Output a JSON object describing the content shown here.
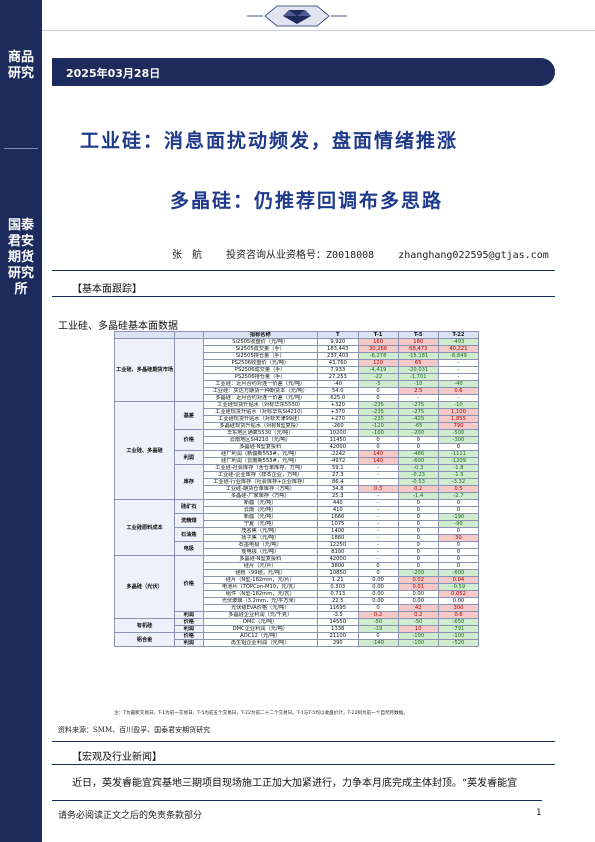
{
  "sidebar": {
    "category": "商品研究",
    "org": "国泰君安期货研究所"
  },
  "header": {
    "date": "2025年03月28日"
  },
  "title": {
    "line1": "工业硅：消息面扰动频发，盘面情绪推涨",
    "line2": "多晶硅：仍推荐回调布多思路"
  },
  "author": {
    "name": "张　航",
    "qualification": "投资咨询从业资格号：Z0018008",
    "email": "zhanghang022595@gtjas.com"
  },
  "sections": {
    "basic": "【基本面跟踪】",
    "macro": "【宏观及行业新闻】"
  },
  "table_title": "工业硅、多晶硅基本面数据",
  "table": {
    "headers": [
      "",
      "",
      "指标名称",
      "T",
      "T-1",
      "T-5",
      "T-22"
    ],
    "rows": [
      {
        "g1": "工业硅、多晶硅期货市场",
        "g2": "",
        "name": "Si2505收盘价（元/吨）",
        "t": "9,920",
        "t1": "160",
        "t5": "180",
        "t22": "-493",
        "c1": "up",
        "c5": "up",
        "c22": "dn"
      },
      {
        "g1": "",
        "g2": "",
        "name": "Si2505成交量（手）",
        "t": "183,443",
        "t1": "30,266",
        "t5": "68,473",
        "t22": "40,221",
        "c1": "up",
        "c5": "up",
        "c22": "up"
      },
      {
        "g1": "",
        "g2": "",
        "name": "Si2505持仓量（手）",
        "t": "237,403",
        "t1": "-6,278",
        "t5": "-15,181",
        "t22": "-6,849",
        "c1": "dn",
        "c5": "dn",
        "c22": "dn"
      },
      {
        "g1": "",
        "g2": "",
        "name": "PS2506收盘价（元/吨）",
        "t": "43,760",
        "t1": "120",
        "t5": "65",
        "t22": "-",
        "c1": "up",
        "c5": "up",
        "c22": ""
      },
      {
        "g1": "",
        "g2": "",
        "name": "PS2506成交量（手）",
        "t": "7,933",
        "t1": "-4,419",
        "t5": "-20,031",
        "t22": "-",
        "c1": "dn",
        "c5": "dn",
        "c22": ""
      },
      {
        "g1": "",
        "g2": "",
        "name": "PS2506持仓量（手）",
        "t": "27,253",
        "t1": "-22",
        "t5": "-1,701",
        "t22": "-",
        "c1": "dn",
        "c5": "dn",
        "c22": ""
      },
      {
        "g1": "",
        "g2": "",
        "name": "工业硅：近月合约对连一价差（元/吨）",
        "t": "-40",
        "t1": "-5",
        "t5": "-10",
        "t22": "-40",
        "c1": "dn",
        "c5": "dn",
        "c22": "dn"
      },
      {
        "g1": "",
        "g2": "",
        "name": "工业硅：实达万期货一种期货本（元/吨）",
        "t": "54.0",
        "t1": "0",
        "t5": "2.5",
        "t22": "0.6",
        "c1": "",
        "c5": "up",
        "c22": "up"
      },
      {
        "g1": "",
        "g2": "",
        "name": "多晶硅：近月合约对连一价差（元/吨）",
        "t": "625.0",
        "t1": "0",
        "t5": "-",
        "t22": "-",
        "c1": "",
        "c5": "",
        "c22": ""
      },
      {
        "g1": "工业硅、多晶硅",
        "g2": "基差",
        "name": "工业硅现货升贴水（对标华东5530）",
        "t": "+320",
        "t1": "-235",
        "t5": "-275",
        "t22": "-10",
        "c1": "dn",
        "c5": "dn",
        "c22": "dn"
      },
      {
        "g1": "",
        "g2": "",
        "name": "工业硅现货升贴水（对标华东Si4210）",
        "t": "+370",
        "t1": "-235",
        "t5": "-275",
        "t22": "1,100",
        "c1": "dn",
        "c5": "dn",
        "c22": "up"
      },
      {
        "g1": "",
        "g2": "",
        "name": "工业硅现货升贴水（对标天津99硅）",
        "t": "+270",
        "t1": "-235",
        "t5": "-425",
        "t22": "1,855",
        "c1": "dn",
        "c5": "dn",
        "c22": "up"
      },
      {
        "g1": "",
        "g2": "",
        "name": "多晶硅现货升贴水（对标N型复投）",
        "t": "-260",
        "t1": "-120",
        "t5": "-65",
        "t22": "790",
        "c1": "dn",
        "c5": "dn",
        "c22": "up"
      },
      {
        "g1": "",
        "g2": "价格",
        "name": "华东地区通氧5530（元/吨）",
        "t": "10200",
        "t1": "-100",
        "t5": "-200",
        "t22": "-500",
        "c1": "dn",
        "c5": "dn",
        "c22": "dn"
      },
      {
        "g1": "",
        "g2": "",
        "name": "云南地区Si4210（元/吨）",
        "t": "11450",
        "t1": "0",
        "t5": "0",
        "t22": "-300",
        "c1": "",
        "c5": "",
        "c22": "dn"
      },
      {
        "g1": "",
        "g2": "",
        "name": "多晶硅-N型复投料",
        "t": "42000",
        "t1": "0",
        "t5": "0",
        "t22": "0",
        "c1": "",
        "c5": "",
        "c22": ""
      },
      {
        "g1": "",
        "g2": "利润",
        "name": "硅厂利润（新疆新553#，元/吨）",
        "t": "-2242",
        "t1": "140",
        "t5": "-486",
        "t22": "-1111",
        "c1": "up",
        "c5": "dn",
        "c22": "dn"
      },
      {
        "g1": "",
        "g2": "",
        "name": "硅厂利润（云南新553#，元/吨）",
        "t": "-4972",
        "t1": "140",
        "t5": "-600",
        "t22": "-1209",
        "c1": "up",
        "c5": "dn",
        "c22": "dn"
      },
      {
        "g1": "",
        "g2": "库存",
        "name": "工业硅-社会库存（含仓单库存，万吨）",
        "t": "59.1",
        "t1": "-",
        "t5": "-0.3",
        "t22": "-1.8",
        "c1": "",
        "c5": "dn",
        "c22": "dn"
      },
      {
        "g1": "",
        "g2": "",
        "name": "工业硅-企业库存（样本企业，万吨）",
        "t": "27.3",
        "t1": "-",
        "t5": "-0.23",
        "t22": "-1.5",
        "c1": "",
        "c5": "dn",
        "c22": "dn"
      },
      {
        "g1": "",
        "g2": "",
        "name": "工业硅-行业库存（社会库存+企业库存）",
        "t": "86.4",
        "t1": "-",
        "t5": "-0.53",
        "t22": "-3.32",
        "c1": "",
        "c5": "dn",
        "c22": "dn"
      },
      {
        "g1": "",
        "g2": "",
        "name": "工业硅-期货仓单库存（万吨）",
        "t": "34.8",
        "t1": "0.3",
        "t5": "0.2",
        "t22": "0.5",
        "c1": "up",
        "c5": "up",
        "c22": "up"
      },
      {
        "g1": "",
        "g2": "",
        "name": "多晶硅-厂家库存（万吨）",
        "t": "25.3",
        "t1": "-",
        "t5": "-1.4",
        "t22": "-2.7",
        "c1": "",
        "c5": "dn",
        "c22": "dn"
      },
      {
        "g1": "工业硅原料成本",
        "g2": "硅矿石",
        "name": "新疆（元/吨）",
        "t": "440",
        "t1": "-",
        "t5": "0",
        "t22": "0",
        "c1": "",
        "c5": "",
        "c22": ""
      },
      {
        "g1": "",
        "g2": "",
        "name": "云南（元/吨）",
        "t": "410",
        "t1": "-",
        "t5": "0",
        "t22": "0",
        "c1": "",
        "c5": "",
        "c22": ""
      },
      {
        "g1": "",
        "g2": "洗精煤",
        "name": "新疆（元/吨）",
        "t": "1660",
        "t1": "-",
        "t5": "0",
        "t22": "-190",
        "c1": "",
        "c5": "",
        "c22": "dn"
      },
      {
        "g1": "",
        "g2": "",
        "name": "宁夏（元/吨）",
        "t": "1075",
        "t1": "-",
        "t5": "0",
        "t22": "-90",
        "c1": "",
        "c5": "",
        "c22": "dn"
      },
      {
        "g1": "",
        "g2": "石油焦",
        "name": "茂名焦（元/吨）",
        "t": "1400",
        "t1": "-",
        "t5": "0",
        "t22": "0",
        "c1": "",
        "c5": "",
        "c22": ""
      },
      {
        "g1": "",
        "g2": "",
        "name": "扬子焦（元/吨）",
        "t": "1860",
        "t1": "-",
        "t5": "0",
        "t22": "30",
        "c1": "",
        "c5": "",
        "c22": "up"
      },
      {
        "g1": "",
        "g2": "电极",
        "name": "石墨电极（元/吨）",
        "t": "12250",
        "t1": "-",
        "t5": "0",
        "t22": "0",
        "c1": "",
        "c5": "",
        "c22": ""
      },
      {
        "g1": "",
        "g2": "",
        "name": "炭电极（元/吨）",
        "t": "8100",
        "t1": "-",
        "t5": "0",
        "t22": "0",
        "c1": "",
        "c5": "",
        "c22": ""
      },
      {
        "g1": "多晶硅（光伏）",
        "g2": "价格",
        "name": "多晶硅-N型复投料",
        "t": "42000",
        "t1": "-",
        "t5": "0",
        "t22": "0",
        "c1": "",
        "c5": "",
        "c22": ""
      },
      {
        "g1": "",
        "g2": "",
        "name": "硅片（元/片）",
        "t": "3800",
        "t1": "0",
        "t5": "0",
        "t22": "0",
        "c1": "",
        "c5": "",
        "c22": ""
      },
      {
        "g1": "",
        "g2": "",
        "name": "硅粉（99硅，元/吨）",
        "t": "10850",
        "t1": "0",
        "t5": "-200",
        "t22": "-600",
        "c1": "",
        "c5": "dn",
        "c22": "dn"
      },
      {
        "g1": "",
        "g2": "",
        "name": "硅片（N型-182mm，元/片）",
        "t": "1.21",
        "t1": "0.00",
        "t5": "0.02",
        "t22": "0.04",
        "c1": "",
        "c5": "up",
        "c22": "up"
      },
      {
        "g1": "",
        "g2": "",
        "name": "电池片（TOPCon-M10，元/瓦）",
        "t": "0.303",
        "t1": "0.00",
        "t5": "0.01",
        "t22": "-0.59",
        "c1": "",
        "c5": "up",
        "c22": "dn"
      },
      {
        "g1": "",
        "g2": "",
        "name": "组件（N型-182mm，元/瓦）",
        "t": "0.713",
        "t1": "0.00",
        "t5": "0.00",
        "t22": "0.052",
        "c1": "",
        "c5": "",
        "c22": "up"
      },
      {
        "g1": "",
        "g2": "",
        "name": "光伏玻璃（3.2mm，元/平方米）",
        "t": "22.5",
        "t1": "0.00",
        "t5": "0.00",
        "t22": "0.00",
        "c1": "",
        "c5": "",
        "c22": ""
      },
      {
        "g1": "",
        "g2": "",
        "name": "光伏级EVA价格（元/吨）",
        "t": "11695",
        "t1": "0",
        "t5": "42",
        "t22": "300",
        "c1": "",
        "c5": "up",
        "c22": "up"
      },
      {
        "g1": "",
        "g2": "利润",
        "name": "多晶硅企业利润（元/千克）",
        "t": "-3.5",
        "t1": "0.2",
        "t5": "0.2",
        "t22": "0.6",
        "c1": "up",
        "c5": "up",
        "c22": "up"
      },
      {
        "g1": "有机硅",
        "g2": "价格",
        "name": "DMC（元/吨）",
        "t": "14550",
        "t1": "-50",
        "t5": "-50",
        "t22": "-650",
        "c1": "dn",
        "c5": "dn",
        "c22": "dn"
      },
      {
        "g1": "",
        "g2": "利润",
        "name": "DMC企业利润（元/吨）",
        "t": "1338",
        "t1": "-19",
        "t5": "10",
        "t22": "-791",
        "c1": "dn",
        "c5": "up",
        "c22": "dn"
      },
      {
        "g1": "铝合金",
        "g2": "价格",
        "name": "ADC12（元/吨）",
        "t": "21100",
        "t1": "0",
        "t5": "-100",
        "t22": "-100",
        "c1": "",
        "c5": "dn",
        "c22": "dn"
      },
      {
        "g1": "",
        "g2": "利润",
        "name": "再生铝企业利润（元/吨）",
        "t": "290",
        "t1": "-140",
        "t5": "-100",
        "t22": "-520",
        "c1": "dn",
        "c5": "dn",
        "c22": "dn"
      }
    ]
  },
  "table_note": "注：T为最新交易日，T-1为前一交易日，T-5为前五个交易日，T-22为前二十二个交易日。T-1与T-5均以收盘价计，T-22则为前一个自然月数据。",
  "source": "资料来源：SMM、百川盈孚、国泰君安期货研究",
  "paragraph": "近日，英发睿能宜宾基地三期项目现场施工正加大加紧进行，力争本月底完成主体封顶。“英发睿能宜",
  "footer": "请务必阅读正文之后的免责条款部分",
  "page_number": "1",
  "colors": {
    "navy": "#1d2a5c",
    "title_blue": "#1f3a8a",
    "up_fill": "#f6c9c9",
    "down_fill": "#cfeccf"
  }
}
